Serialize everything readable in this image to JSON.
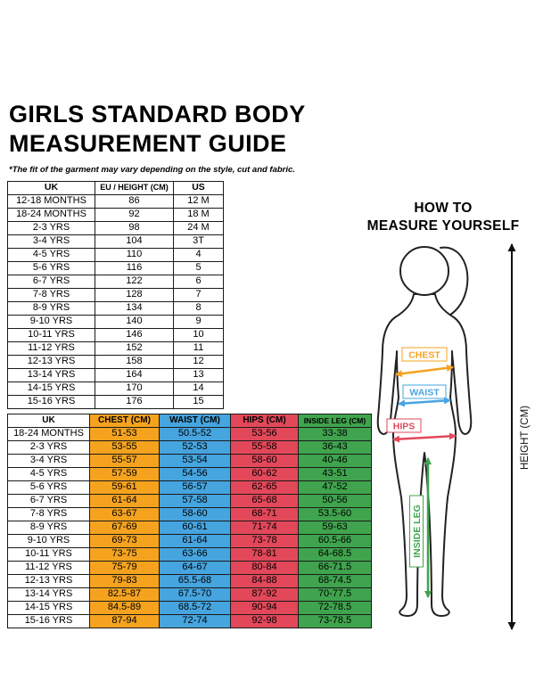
{
  "page": {
    "title_line1": "GIRLS STANDARD BODY",
    "title_line2": "MEASUREMENT GUIDE",
    "disclaimer": "*The fit of the garment may vary depending on the style, cut and fabric."
  },
  "size_table": {
    "headers": [
      "UK",
      "EU / HEIGHT (CM)",
      "US"
    ],
    "rows": [
      [
        "12-18 MONTHS",
        "86",
        "12 M"
      ],
      [
        "18-24 MONTHS",
        "92",
        "18 M"
      ],
      [
        "2-3 YRS",
        "98",
        "24 M"
      ],
      [
        "3-4 YRS",
        "104",
        "3T"
      ],
      [
        "4-5 YRS",
        "110",
        "4"
      ],
      [
        "5-6 YRS",
        "116",
        "5"
      ],
      [
        "6-7 YRS",
        "122",
        "6"
      ],
      [
        "7-8 YRS",
        "128",
        "7"
      ],
      [
        "8-9 YRS",
        "134",
        "8"
      ],
      [
        "9-10 YRS",
        "140",
        "9"
      ],
      [
        "10-11 YRS",
        "146",
        "10"
      ],
      [
        "11-12 YRS",
        "152",
        "11"
      ],
      [
        "12-13 YRS",
        "158",
        "12"
      ],
      [
        "13-14 YRS",
        "164",
        "13"
      ],
      [
        "14-15 YRS",
        "170",
        "14"
      ],
      [
        "15-16 YRS",
        "176",
        "15"
      ]
    ]
  },
  "measure_table": {
    "headers": [
      "UK",
      "CHEST (CM)",
      "WAIST (CM)",
      "HIPS (CM)",
      "INSIDE LEG (CM)"
    ],
    "rows": [
      [
        "18-24 MONTHS",
        "51-53",
        "50.5-52",
        "53-56",
        "33-38"
      ],
      [
        "2-3 YRS",
        "53-55",
        "52-53",
        "55-58",
        "36-43"
      ],
      [
        "3-4 YRS",
        "55-57",
        "53-54",
        "58-60",
        "40-46"
      ],
      [
        "4-5 YRS",
        "57-59",
        "54-56",
        "60-62",
        "43-51"
      ],
      [
        "5-6 YRS",
        "59-61",
        "56-57",
        "62-65",
        "47-52"
      ],
      [
        "6-7 YRS",
        "61-64",
        "57-58",
        "65-68",
        "50-56"
      ],
      [
        "7-8 YRS",
        "63-67",
        "58-60",
        "68-71",
        "53.5-60"
      ],
      [
        "8-9 YRS",
        "67-69",
        "60-61",
        "71-74",
        "59-63"
      ],
      [
        "9-10 YRS",
        "69-73",
        "61-64",
        "73-78",
        "60.5-66"
      ],
      [
        "10-11 YRS",
        "73-75",
        "63-66",
        "78-81",
        "64-68.5"
      ],
      [
        "11-12 YRS",
        "75-79",
        "64-67",
        "80-84",
        "66-71.5"
      ],
      [
        "12-13 YRS",
        "79-83",
        "65.5-68",
        "84-88",
        "68-74.5"
      ],
      [
        "13-14 YRS",
        "82.5-87",
        "67.5-70",
        "87-92",
        "70-77.5"
      ],
      [
        "14-15 YRS",
        "84.5-89",
        "68.5-72",
        "90-94",
        "72-78.5"
      ],
      [
        "15-16 YRS",
        "87-94",
        "72-74",
        "92-98",
        "73-78.5"
      ]
    ]
  },
  "how_to": {
    "heading_line1": "HOW TO",
    "heading_line2": "MEASURE YOURSELF",
    "labels": {
      "chest": "CHEST",
      "waist": "WAIST",
      "hips": "HIPS",
      "inside_leg": "INSIDE LEG",
      "height": "HEIGHT (CM)"
    }
  },
  "colors": {
    "chest": "#F5A31F",
    "waist": "#46A4DF",
    "hips": "#E2485A",
    "inside_leg": "#3FA44D"
  }
}
